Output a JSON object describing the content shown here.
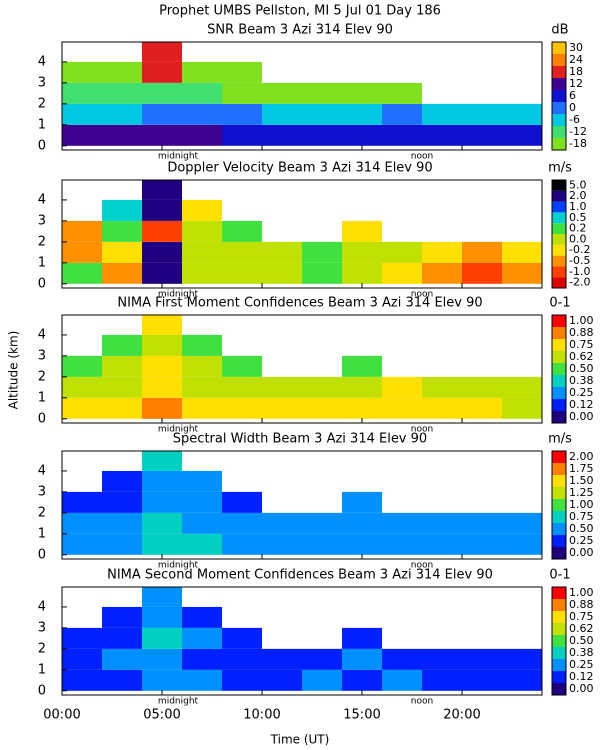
{
  "title": "Prophet  UMBS Pellston, MI   5 Jul 01 Day 186",
  "x_label": "Time (UT)",
  "y_label": "Altitude (km)",
  "time_axis": {
    "xlim": [
      0,
      24
    ],
    "xticks": [
      {
        "value": 0,
        "label": "00:00"
      },
      {
        "value": 5,
        "label": "05:00"
      },
      {
        "value": 10,
        "label": "10:00"
      },
      {
        "value": 15,
        "label": "15:00"
      },
      {
        "value": 20,
        "label": "20:00"
      }
    ]
  },
  "annotations": [
    {
      "text": "midnight",
      "x": 5.8
    },
    {
      "text": "noon",
      "x": 18
    }
  ],
  "chart_data": [
    {
      "type": "heatmap",
      "title": "SNR Beam 3 Azi 314 Elev 90",
      "unit_label": "dB",
      "x": [
        1,
        3,
        5,
        7,
        9,
        11,
        13,
        15,
        17,
        19,
        21,
        23
      ],
      "y": [
        0.5,
        1.5,
        2.5,
        3.5,
        4.5
      ],
      "ylim": [
        -0.2,
        4.95
      ],
      "yticks": [
        0,
        1,
        2,
        3,
        4
      ],
      "z": [
        [
          12,
          12,
          12,
          12,
          6,
          6,
          6,
          6,
          6,
          6,
          6,
          6
        ],
        [
          -6,
          -6,
          0,
          0,
          0,
          -6,
          -6,
          -6,
          0,
          -6,
          -6,
          -6
        ],
        [
          -12,
          -12,
          -12,
          -12,
          -18,
          -18,
          -18,
          -18,
          -18,
          null,
          null,
          null
        ],
        [
          -18,
          -18,
          18,
          -18,
          -18,
          null,
          null,
          null,
          null,
          null,
          null,
          null
        ],
        [
          null,
          null,
          18,
          null,
          null,
          null,
          null,
          null,
          null,
          null,
          null,
          null
        ]
      ],
      "cticks": [
        -18,
        -12,
        -6,
        0,
        6,
        12,
        18,
        24,
        30
      ],
      "colors": [
        "#80e020",
        "#40e070",
        "#00c8e0",
        "#2070ff",
        "#1010d0",
        "#400090",
        "#e02020",
        "#ff8000",
        "#ffc000"
      ]
    },
    {
      "type": "heatmap",
      "title": "Doppler Velocity Beam 3 Azi 314 Elev 90",
      "unit_label": "m/s",
      "x": [
        1,
        3,
        5,
        7,
        9,
        11,
        13,
        15,
        17,
        19,
        21,
        23
      ],
      "y": [
        0.5,
        1.5,
        2.5,
        3.5,
        4.5
      ],
      "ylim": [
        -0.2,
        4.95
      ],
      "yticks": [
        0,
        1,
        2,
        3,
        4
      ],
      "z": [
        [
          0.2,
          -0.5,
          2.0,
          0,
          0,
          0,
          0.2,
          0,
          -0.2,
          -0.5,
          -1,
          -0.5
        ],
        [
          -0.5,
          -0.2,
          2.0,
          0,
          0,
          0,
          0.2,
          0,
          0,
          -0.2,
          -0.5,
          -0.2
        ],
        [
          -0.5,
          0.2,
          -1,
          0,
          0.2,
          null,
          null,
          -0.2,
          null,
          null,
          null,
          null
        ],
        [
          null,
          0.5,
          2.0,
          -0.2,
          null,
          null,
          null,
          null,
          null,
          null,
          null,
          null
        ],
        [
          null,
          null,
          2.0,
          null,
          null,
          null,
          null,
          null,
          null,
          null,
          null,
          null
        ]
      ],
      "cticks": [
        {
          "value": -2,
          "label": "-2.0"
        },
        {
          "value": -1,
          "label": "-1.0"
        },
        -0.5,
        -0.2,
        {
          "value": 0,
          "label": "0.0"
        },
        0.2,
        0.5,
        {
          "value": 1,
          "label": "1.0"
        },
        {
          "value": 2,
          "label": "2.0"
        },
        {
          "value": 5,
          "label": "5.0"
        }
      ],
      "colors": [
        "#e00000",
        "#ff4000",
        "#ff9000",
        "#ffe000",
        "#c0e000",
        "#40e040",
        "#00d0d0",
        "#0040ff",
        "#200080",
        "#000000"
      ]
    },
    {
      "type": "heatmap",
      "title": "NIMA First Moment Confidences Beam 3 Azi 314 Elev 90",
      "unit_label": "0-1",
      "x": [
        1,
        3,
        5,
        7,
        9,
        11,
        13,
        15,
        17,
        19,
        21,
        23
      ],
      "y": [
        0.5,
        1.5,
        2.5,
        3.5,
        4.5
      ],
      "ylim": [
        -0.2,
        4.95
      ],
      "yticks": [
        0,
        1,
        2,
        3,
        4
      ],
      "z": [
        [
          0.75,
          0.75,
          0.88,
          0.75,
          0.75,
          0.75,
          0.75,
          0.75,
          0.75,
          0.75,
          0.75,
          0.62
        ],
        [
          0.62,
          0.62,
          0.75,
          0.62,
          0.62,
          0.62,
          0.62,
          0.62,
          0.75,
          0.62,
          0.62,
          0.62
        ],
        [
          0.5,
          0.62,
          0.75,
          0.62,
          0.5,
          null,
          null,
          0.5,
          null,
          null,
          null,
          null
        ],
        [
          null,
          0.5,
          0.62,
          0.5,
          null,
          null,
          null,
          null,
          null,
          null,
          null,
          null
        ],
        [
          null,
          null,
          0.75,
          null,
          null,
          null,
          null,
          null,
          null,
          null,
          null,
          null
        ]
      ],
      "cticks": [
        {
          "value": 0,
          "label": "0.00"
        },
        0.12,
        0.25,
        0.38,
        {
          "value": 0.5,
          "label": "0.50"
        },
        0.62,
        0.75,
        0.88,
        {
          "value": 1,
          "label": "1.00"
        }
      ],
      "colors": [
        "#200080",
        "#0020ff",
        "#0090ff",
        "#00d0c0",
        "#40e040",
        "#c0e000",
        "#ffe000",
        "#ff8000",
        "#ff0000"
      ]
    },
    {
      "type": "heatmap",
      "title": "Spectral Width Beam 3 Azi 314 Elev 90",
      "unit_label": "m/s",
      "x": [
        1,
        3,
        5,
        7,
        9,
        11,
        13,
        15,
        17,
        19,
        21,
        23
      ],
      "y": [
        0.5,
        1.5,
        2.5,
        3.5,
        4.5
      ],
      "ylim": [
        -0.2,
        4.95
      ],
      "yticks": [
        0,
        1,
        2,
        3,
        4
      ],
      "z": [
        [
          0.5,
          0.5,
          0.75,
          0.75,
          0.62,
          0.62,
          0.62,
          0.62,
          0.62,
          0.62,
          0.62,
          0.62
        ],
        [
          0.5,
          0.5,
          0.75,
          0.62,
          0.5,
          0.5,
          0.62,
          0.62,
          0.5,
          0.62,
          0.5,
          0.62
        ],
        [
          0.25,
          0.38,
          0.62,
          0.62,
          0.25,
          null,
          null,
          0.5,
          null,
          null,
          null,
          null
        ],
        [
          null,
          0.38,
          0.62,
          0.62,
          null,
          null,
          null,
          null,
          null,
          null,
          null,
          null
        ],
        [
          null,
          null,
          0.75,
          null,
          null,
          null,
          null,
          null,
          null,
          null,
          null,
          null
        ]
      ],
      "cticks": [
        {
          "value": 0,
          "label": "0.00"
        },
        0.25,
        {
          "value": 0.5,
          "label": "0.50"
        },
        0.75,
        {
          "value": 1,
          "label": "1.00"
        },
        1.25,
        {
          "value": 1.5,
          "label": "1.50"
        },
        1.75,
        {
          "value": 2,
          "label": "2.00"
        }
      ],
      "colors": [
        "#200080",
        "#0020ff",
        "#0090ff",
        "#00d0c0",
        "#40e040",
        "#c0e000",
        "#ffe000",
        "#ff8000",
        "#ff0000"
      ]
    },
    {
      "type": "heatmap",
      "title": "NIMA Second Moment Confidences Beam 3 Azi 314 Elev 90",
      "unit_label": "0-1",
      "x": [
        1,
        3,
        5,
        7,
        9,
        11,
        13,
        15,
        17,
        19,
        21,
        23
      ],
      "y": [
        0.5,
        1.5,
        2.5,
        3.5,
        4.5
      ],
      "ylim": [
        -0.2,
        4.95
      ],
      "yticks": [
        0,
        1,
        2,
        3,
        4
      ],
      "z": [
        [
          0.12,
          0.12,
          0.25,
          0.25,
          0.12,
          0.12,
          0.25,
          0.12,
          0.25,
          0.12,
          0.12,
          0.12
        ],
        [
          0.12,
          0.25,
          0.25,
          0.12,
          0.12,
          0.12,
          0.12,
          0.25,
          0.12,
          0.12,
          0.12,
          0.12
        ],
        [
          0.12,
          0.12,
          0.38,
          0.25,
          0.12,
          null,
          null,
          0.12,
          null,
          null,
          null,
          null
        ],
        [
          null,
          0.12,
          0.25,
          0.12,
          null,
          null,
          null,
          null,
          null,
          null,
          null,
          null
        ],
        [
          null,
          null,
          0.25,
          null,
          null,
          null,
          null,
          null,
          null,
          null,
          null,
          null
        ]
      ],
      "cticks": [
        {
          "value": 0,
          "label": "0.00"
        },
        0.12,
        0.25,
        0.38,
        {
          "value": 0.5,
          "label": "0.50"
        },
        0.62,
        0.75,
        0.88,
        {
          "value": 1,
          "label": "1.00"
        }
      ],
      "colors": [
        "#200080",
        "#0020ff",
        "#0090ff",
        "#00d0c0",
        "#40e040",
        "#c0e000",
        "#ffe000",
        "#ff8000",
        "#ff0000"
      ]
    }
  ]
}
